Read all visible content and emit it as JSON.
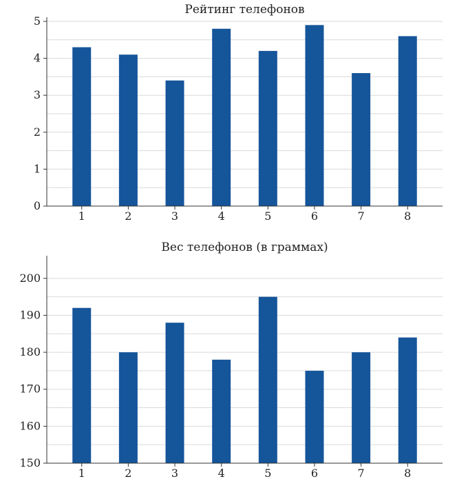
{
  "chart_data": [
    {
      "type": "bar",
      "title": "Рейтинг телефонов",
      "categories": [
        "1",
        "2",
        "3",
        "4",
        "5",
        "6",
        "7",
        "8"
      ],
      "values": [
        4.3,
        4.1,
        3.4,
        4.8,
        4.2,
        4.9,
        3.6,
        4.6
      ],
      "ylim": [
        0,
        5
      ],
      "yticks": [
        "0",
        "1",
        "2",
        "3",
        "4",
        "5"
      ],
      "ytick_values": [
        0,
        1,
        2,
        3,
        4,
        5
      ],
      "grid_values": [
        0.5,
        1,
        1.5,
        2,
        2.5,
        3,
        3.5,
        4,
        4.5,
        5
      ],
      "grid": true,
      "bar_color": "#15559a"
    },
    {
      "type": "bar",
      "title": "Вес телефонов (в граммах)",
      "categories": [
        "1",
        "2",
        "3",
        "4",
        "5",
        "6",
        "7",
        "8"
      ],
      "values": [
        192,
        180,
        188,
        178,
        195,
        175,
        180,
        184
      ],
      "ylim": [
        150,
        205
      ],
      "yticks": [
        "150",
        "160",
        "170",
        "180",
        "190",
        "200"
      ],
      "ytick_values": [
        150,
        160,
        170,
        180,
        190,
        200
      ],
      "grid_values": [
        155,
        160,
        165,
        170,
        175,
        180,
        185,
        190,
        195,
        200
      ],
      "grid": true,
      "bar_color": "#15559a"
    }
  ]
}
